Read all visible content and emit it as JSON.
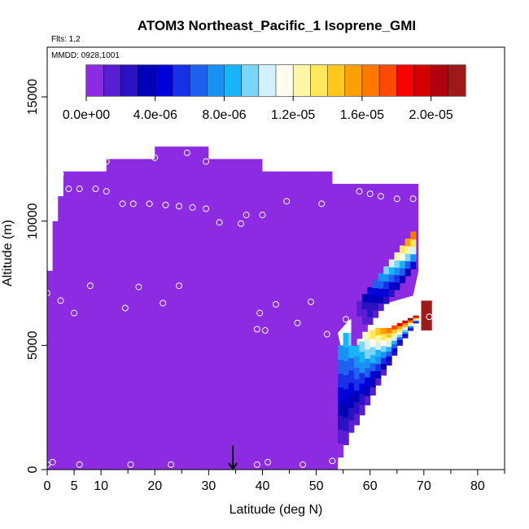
{
  "chart_data": {
    "type": "heatmap",
    "title": "ATOM3 Northeast_Pacific_1 Isoprene_GMI",
    "flights_label": "Flts: 1,2",
    "date_label": "MMDD: 0928,1001",
    "xlabel": "Latitude (deg N)",
    "ylabel": "Altitude (m)",
    "xlim": [
      0,
      85
    ],
    "ylim": [
      0,
      17000
    ],
    "x_ticks": [
      0,
      5,
      10,
      20,
      30,
      40,
      50,
      60,
      70,
      80
    ],
    "y_ticks": [
      0,
      5000,
      10000,
      15000
    ],
    "y_tick_labels": [
      "0",
      "5000",
      "10000",
      "15000"
    ],
    "colorbar": {
      "min": 0,
      "max": 2.2e-05,
      "tick_values": [
        0,
        4e-06,
        8e-06,
        1.2e-05,
        1.6e-05,
        2e-05
      ],
      "tick_labels": [
        "0.0e+00",
        "4.0e-06",
        "8.0e-06",
        "1.2e-05",
        "1.6e-05",
        "2.0e-05"
      ],
      "colors": [
        "#8c2be2",
        "#5a1ed2",
        "#2a12c2",
        "#0000b8",
        "#0000d8",
        "#1830e8",
        "#1f60ee",
        "#1890f4",
        "#18b4f8",
        "#7cd4fb",
        "#d4f0fc",
        "#fcfcf0",
        "#fff7a8",
        "#ffe85a",
        "#ffc81a",
        "#ffa000",
        "#ff7800",
        "#ff4800",
        "#f80000",
        "#d40000",
        "#b00010",
        "#9e1a1a"
      ]
    },
    "domain_upper_edge": [
      [
        0,
        8000
      ],
      [
        1,
        10000
      ],
      [
        2,
        11000
      ],
      [
        3,
        12000
      ],
      [
        11,
        12500
      ],
      [
        20,
        13000
      ],
      [
        30,
        12500
      ],
      [
        40,
        12000
      ],
      [
        53,
        11500
      ],
      [
        56,
        11500
      ],
      [
        62,
        11500
      ],
      [
        65,
        11500
      ],
      [
        69,
        11000
      ]
    ],
    "domain_east_edge": [
      [
        0,
        54
      ],
      [
        5000,
        54.5
      ],
      [
        5500,
        54
      ],
      [
        6000,
        56
      ],
      [
        6500,
        60
      ],
      [
        7000,
        68
      ],
      [
        8000,
        69
      ],
      [
        9000,
        69
      ],
      [
        10000,
        69
      ],
      [
        11000,
        69
      ]
    ],
    "isoprene_plume_columns": [
      {
        "lat": 54.5,
        "bottom": 500,
        "top": 5000
      },
      {
        "lat": 55.5,
        "bottom": 1000,
        "top": 5500
      },
      {
        "lat": 56.5,
        "bottom": 1500,
        "top": 5500
      },
      {
        "lat": 57.5,
        "bottom": 1800,
        "top": 5500
      },
      {
        "lat": 58.5,
        "bottom": 2200,
        "top": 5600
      },
      {
        "lat": 59.5,
        "bottom": 2600,
        "top": 5600
      },
      {
        "lat": 60.5,
        "bottom": 3000,
        "top": 5600
      },
      {
        "lat": 61.5,
        "bottom": 3400,
        "top": 5700
      },
      {
        "lat": 62.5,
        "bottom": 3800,
        "top": 5700
      },
      {
        "lat": 63.5,
        "bottom": 4200,
        "top": 5700
      },
      {
        "lat": 64.5,
        "bottom": 4600,
        "top": 5800
      },
      {
        "lat": 65.5,
        "bottom": 5000,
        "top": 5900
      },
      {
        "lat": 66.5,
        "bottom": 5300,
        "top": 6000
      },
      {
        "lat": 67.5,
        "bottom": 5600,
        "top": 6100
      },
      {
        "lat": 68.5,
        "bottom": 5900,
        "top": 6200
      }
    ],
    "isoprene_plume_peak": {
      "lat": 70.5,
      "altitude": 6200,
      "value": 2.1e-05
    },
    "flight_samples": [
      [
        0,
        7100
      ],
      [
        0,
        200
      ],
      [
        1,
        300
      ],
      [
        2.5,
        6800
      ],
      [
        2.5,
        11900
      ],
      [
        4,
        11300
      ],
      [
        5,
        6300
      ],
      [
        6,
        11300
      ],
      [
        6,
        200
      ],
      [
        8,
        7400
      ],
      [
        9,
        11300
      ],
      [
        11,
        12400
      ],
      [
        11,
        11200
      ],
      [
        14,
        10700
      ],
      [
        14.5,
        6500
      ],
      [
        15.5,
        200
      ],
      [
        16,
        10700
      ],
      [
        17,
        7350
      ],
      [
        19,
        10700
      ],
      [
        20,
        12550
      ],
      [
        21.5,
        6700
      ],
      [
        22,
        10650
      ],
      [
        23,
        200
      ],
      [
        24.5,
        7400
      ],
      [
        24.5,
        10600
      ],
      [
        26,
        12750
      ],
      [
        27,
        10550
      ],
      [
        29.5,
        12400
      ],
      [
        29.5,
        10500
      ],
      [
        32,
        9950
      ],
      [
        36,
        9900
      ],
      [
        37,
        10250
      ],
      [
        39,
        5650
      ],
      [
        39,
        200
      ],
      [
        39.5,
        6300
      ],
      [
        40,
        10250
      ],
      [
        40.5,
        5600
      ],
      [
        41,
        300
      ],
      [
        42.5,
        6650
      ],
      [
        44.5,
        10800
      ],
      [
        46.5,
        5900
      ],
      [
        47.5,
        200
      ],
      [
        49,
        6750
      ],
      [
        51,
        10700
      ],
      [
        52,
        5450
      ],
      [
        53,
        350
      ],
      [
        55.5,
        6050
      ],
      [
        58,
        11200
      ],
      [
        60,
        11100
      ],
      [
        62,
        11000
      ],
      [
        65,
        10900
      ],
      [
        68,
        10900
      ],
      [
        71,
        6150
      ]
    ],
    "arrow": {
      "lat": 34.5,
      "altitude_from": 700,
      "altitude_to": 0
    }
  }
}
